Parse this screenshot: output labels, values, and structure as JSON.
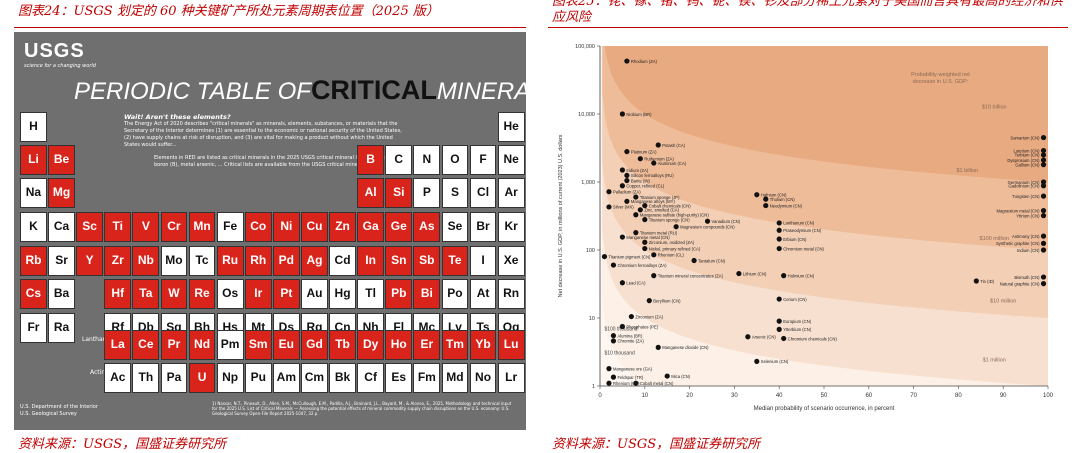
{
  "left_panel": {
    "caption": "图表24：USGS 划定的 60 种关键矿产所处元素周期表位置（2025 版）",
    "source": "资料来源：USGS，国盛证券研究所",
    "logo": {
      "name": "USGS",
      "tagline": "science for a changing world"
    },
    "title_main": "PERIODIC TABLE OF",
    "title_bold": "CRITICAL",
    "title_end": "MINERALS",
    "info_heading": "Wait! Aren't these elements?",
    "info_text": "The Energy Act of 2020 describes \"critical minerals\" as minerals, elements, substances, or materials that the Secretary of the Interior determines (1) are essential to the economic or national security of the United States, (2) have supply chains at risk of disruption, and (3) are vital for making a product without which the United States would suffer...",
    "legend_text": "Elements in RED are listed as critical minerals in the 2025 USGS critical mineral list. Graphite (C), boron (B), metal arsenic, ... Critical lists are available from the USGS critical mineral list.",
    "lanthanides_label": "Lanthanides",
    "actinides_label": "Actinides",
    "footer_left": "U.S. Department of the Interior\nU.S. Geological Survey",
    "footer_right": "1) Nassar, N.T., Pineault, D., Allen, S.M., McCullough, E.M., Padilla, A.J., Brainard, J.L., Bayard, M., & Alonso, E., 2025, Methodology and technical input for the 2025 U.S. List of Critical Minerals — Assessing the potential effects of mineral commodity supply chain disruptions on the U.S. economy: U.S. Geological Survey Open-File Report 2025-1047, 32 p.",
    "colors": {
      "critical": "#d9241c",
      "normal": "#ffffff",
      "background": "#6f6f6f"
    },
    "rows": [
      [
        [
          "H",
          1,
          "n"
        ],
        [
          "He",
          18,
          "n"
        ]
      ],
      [
        [
          "Li",
          1,
          "c"
        ],
        [
          "Be",
          2,
          "c"
        ],
        [
          "B",
          13,
          "c"
        ],
        [
          "C",
          14,
          "n"
        ],
        [
          "N",
          15,
          "n"
        ],
        [
          "O",
          16,
          "n"
        ],
        [
          "F",
          17,
          "n"
        ],
        [
          "Ne",
          18,
          "n"
        ]
      ],
      [
        [
          "Na",
          1,
          "n"
        ],
        [
          "Mg",
          2,
          "c"
        ],
        [
          "Al",
          13,
          "c"
        ],
        [
          "Si",
          14,
          "c"
        ],
        [
          "P",
          15,
          "n"
        ],
        [
          "S",
          16,
          "n"
        ],
        [
          "Cl",
          17,
          "n"
        ],
        [
          "Ar",
          18,
          "n"
        ]
      ],
      [
        [
          "K",
          1,
          "n"
        ],
        [
          "Ca",
          2,
          "n"
        ],
        [
          "Sc",
          3,
          "c"
        ],
        [
          "Ti",
          4,
          "c"
        ],
        [
          "V",
          5,
          "c"
        ],
        [
          "Cr",
          6,
          "c"
        ],
        [
          "Mn",
          7,
          "c"
        ],
        [
          "Fe",
          8,
          "n"
        ],
        [
          "Co",
          9,
          "c"
        ],
        [
          "Ni",
          10,
          "c"
        ],
        [
          "Cu",
          11,
          "c"
        ],
        [
          "Zn",
          12,
          "c"
        ],
        [
          "Ga",
          13,
          "c"
        ],
        [
          "Ge",
          14,
          "c"
        ],
        [
          "As",
          15,
          "c"
        ],
        [
          "Se",
          16,
          "n"
        ],
        [
          "Br",
          17,
          "n"
        ],
        [
          "Kr",
          18,
          "n"
        ]
      ],
      [
        [
          "Rb",
          1,
          "c"
        ],
        [
          "Sr",
          2,
          "n"
        ],
        [
          "Y",
          3,
          "c"
        ],
        [
          "Zr",
          4,
          "c"
        ],
        [
          "Nb",
          5,
          "c"
        ],
        [
          "Mo",
          6,
          "n"
        ],
        [
          "Tc",
          7,
          "n"
        ],
        [
          "Ru",
          8,
          "c"
        ],
        [
          "Rh",
          9,
          "c"
        ],
        [
          "Pd",
          10,
          "c"
        ],
        [
          "Ag",
          11,
          "c"
        ],
        [
          "Cd",
          12,
          "n"
        ],
        [
          "In",
          13,
          "c"
        ],
        [
          "Sn",
          14,
          "c"
        ],
        [
          "Sb",
          15,
          "c"
        ],
        [
          "Te",
          16,
          "c"
        ],
        [
          "I",
          17,
          "n"
        ],
        [
          "Xe",
          18,
          "n"
        ]
      ],
      [
        [
          "Cs",
          1,
          "c"
        ],
        [
          "Ba",
          2,
          "n"
        ],
        [
          "Hf",
          4,
          "c"
        ],
        [
          "Ta",
          5,
          "c"
        ],
        [
          "W",
          6,
          "c"
        ],
        [
          "Re",
          7,
          "c"
        ],
        [
          "Os",
          8,
          "n"
        ],
        [
          "Ir",
          9,
          "c"
        ],
        [
          "Pt",
          10,
          "c"
        ],
        [
          "Au",
          11,
          "n"
        ],
        [
          "Hg",
          12,
          "n"
        ],
        [
          "Tl",
          13,
          "n"
        ],
        [
          "Pb",
          14,
          "c"
        ],
        [
          "Bi",
          15,
          "c"
        ],
        [
          "Po",
          16,
          "n"
        ],
        [
          "At",
          17,
          "n"
        ],
        [
          "Rn",
          18,
          "n"
        ]
      ],
      [
        [
          "Fr",
          1,
          "n"
        ],
        [
          "Ra",
          2,
          "n"
        ],
        [
          "Rf",
          4,
          "n"
        ],
        [
          "Db",
          5,
          "n"
        ],
        [
          "Sg",
          6,
          "n"
        ],
        [
          "Bh",
          7,
          "n"
        ],
        [
          "Hs",
          8,
          "n"
        ],
        [
          "Mt",
          9,
          "n"
        ],
        [
          "Ds",
          10,
          "n"
        ],
        [
          "Rg",
          11,
          "n"
        ],
        [
          "Cn",
          12,
          "n"
        ],
        [
          "Nh",
          13,
          "n"
        ],
        [
          "Fl",
          14,
          "n"
        ],
        [
          "Mc",
          15,
          "n"
        ],
        [
          "Lv",
          16,
          "n"
        ],
        [
          "Ts",
          17,
          "n"
        ],
        [
          "Og",
          18,
          "n"
        ]
      ]
    ],
    "lanthanides": [
      [
        "La",
        "c"
      ],
      [
        "Ce",
        "c"
      ],
      [
        "Pr",
        "c"
      ],
      [
        "Nd",
        "c"
      ],
      [
        "Pm",
        "n"
      ],
      [
        "Sm",
        "c"
      ],
      [
        "Eu",
        "c"
      ],
      [
        "Gd",
        "c"
      ],
      [
        "Tb",
        "c"
      ],
      [
        "Dy",
        "c"
      ],
      [
        "Ho",
        "c"
      ],
      [
        "Er",
        "c"
      ],
      [
        "Tm",
        "c"
      ],
      [
        "Yb",
        "c"
      ],
      [
        "Lu",
        "c"
      ]
    ],
    "actinides": [
      [
        "Ac",
        "n"
      ],
      [
        "Th",
        "n"
      ],
      [
        "Pa",
        "n"
      ],
      [
        "U",
        "c"
      ],
      [
        "Np",
        "n"
      ],
      [
        "Pu",
        "n"
      ],
      [
        "Am",
        "n"
      ],
      [
        "Cm",
        "n"
      ],
      [
        "Bk",
        "n"
      ],
      [
        "Cf",
        "n"
      ],
      [
        "Es",
        "n"
      ],
      [
        "Fm",
        "n"
      ],
      [
        "Md",
        "n"
      ],
      [
        "No",
        "n"
      ],
      [
        "Lr",
        "n"
      ]
    ]
  },
  "right_panel": {
    "caption": "图表25：铑、镓、锗、钨、铌、镁、钐及部分稀土元素对于美国而言具有最高的经济和供应风险",
    "source": "资料来源：USGS，国盛证券研究所",
    "chart_data": {
      "type": "scatter",
      "title": "",
      "xlabel": "Median probability of scenario occurrence, in percent",
      "ylabel": "Net decrease in U.S. GDP, in millions of current (2023) U.S. dollars",
      "xlim": [
        0,
        100
      ],
      "ylim": [
        1,
        100000
      ],
      "y_scale": "log",
      "x_ticks": [
        0,
        10,
        20,
        30,
        40,
        50,
        60,
        70,
        80,
        90,
        100
      ],
      "y_ticks": [
        1,
        10,
        100,
        1000,
        10000,
        100000
      ],
      "y_tick_labels": [
        "1",
        "10",
        "100",
        "1,000",
        "10,000",
        "100,000"
      ],
      "band_colors": [
        "#fbeee5",
        "#f7ddcb",
        "#f2cbb0",
        "#edb995",
        "#e6a77c"
      ],
      "band_labels": [
        {
          "text": "$1 million",
          "x": 88,
          "y": 2.3
        },
        {
          "text": "$10 million",
          "x": 90,
          "y": 17
        },
        {
          "text": "$100 million",
          "x": 88,
          "y": 140
        },
        {
          "text": "$1 billion",
          "x": 82,
          "y": 1400
        },
        {
          "text": "$10 billion",
          "x": 88,
          "y": 12000
        }
      ],
      "legend_text": [
        "Probability-weighted net",
        "decrease in U.S. GDP:"
      ],
      "contour_labels": [
        {
          "text": "$100 thousand",
          "x": 1,
          "y": 6.5
        },
        {
          "text": "$10 thousand",
          "x": 1,
          "y": 2.9
        }
      ],
      "points": [
        {
          "label": "Rhodium (ZA)",
          "x": 6,
          "y": 60000
        },
        {
          "label": "Niobium (BR)",
          "x": 5,
          "y": 10000
        },
        {
          "label": "Samarium (CN)",
          "x": 99,
          "y": 4500
        },
        {
          "label": "Potash (CA)",
          "x": 13,
          "y": 3500
        },
        {
          "label": "Platinum (ZA)",
          "x": 6,
          "y": 2800
        },
        {
          "label": "Ruthenium (ZA)",
          "x": 9,
          "y": 2200
        },
        {
          "label": "Aluminum (CA)",
          "x": 12,
          "y": 1900
        },
        {
          "label": "Lutetium (CN)",
          "x": 99,
          "y": 2900
        },
        {
          "label": "Terbium (CN)",
          "x": 99,
          "y": 2500
        },
        {
          "label": "Dysprosium (CN)",
          "x": 99,
          "y": 2100
        },
        {
          "label": "Gallium (CN)",
          "x": 99,
          "y": 1800
        },
        {
          "label": "Iridium (ZA)",
          "x": 5,
          "y": 1500
        },
        {
          "label": "Silicon ferroalloys (RU)",
          "x": 6,
          "y": 1250
        },
        {
          "label": "Barite (IN)",
          "x": 6,
          "y": 1050
        },
        {
          "label": "Copper, refined (CL)",
          "x": 5,
          "y": 880
        },
        {
          "label": "Palladium (ZA)",
          "x": 2,
          "y": 720
        },
        {
          "label": "Titanium sponge (JP)",
          "x": 8,
          "y": 600
        },
        {
          "label": "Manganese alloys (MY)",
          "x": 6,
          "y": 520
        },
        {
          "label": "Cobalt chemicals (CN)",
          "x": 10,
          "y": 450
        },
        {
          "label": "Zinc, smelted (CA)",
          "x": 9,
          "y": 390
        },
        {
          "label": "Silver (MX)",
          "x": 2,
          "y": 430
        },
        {
          "label": "Manganese sulfate (high-purity) (CN)",
          "x": 8,
          "y": 330
        },
        {
          "label": "Germanium (CN)",
          "x": 99,
          "y": 1000
        },
        {
          "label": "Gadolinium (CN)",
          "x": 99,
          "y": 880
        },
        {
          "label": "Tungsten (CN)",
          "x": 99,
          "y": 620
        },
        {
          "label": "Hafnium (CN)",
          "x": 35,
          "y": 650
        },
        {
          "label": "Thulium (CN)",
          "x": 37,
          "y": 560
        },
        {
          "label": "Neodymium (CN)",
          "x": 37,
          "y": 450
        },
        {
          "label": "Magnesium metal (CN)",
          "x": 99,
          "y": 380
        },
        {
          "label": "Yttrium (CN)",
          "x": 99,
          "y": 320
        },
        {
          "label": "Titanium sponge (CN)",
          "x": 10,
          "y": 280
        },
        {
          "label": "Vanadium (CN)",
          "x": 24,
          "y": 265
        },
        {
          "label": "Magnesium compounds (CN)",
          "x": 17,
          "y": 220
        },
        {
          "label": "Lanthanum (CN)",
          "x": 40,
          "y": 250
        },
        {
          "label": "Praseodymium (CN)",
          "x": 40,
          "y": 195
        },
        {
          "label": "Titanium metal (RU)",
          "x": 8,
          "y": 180
        },
        {
          "label": "Manganese metal (CN)",
          "x": 5,
          "y": 155
        },
        {
          "label": "Erbium (CN)",
          "x": 40,
          "y": 145
        },
        {
          "label": "Antimony (CN)",
          "x": 99,
          "y": 160
        },
        {
          "label": "Synthetic graphite (CN)",
          "x": 99,
          "y": 125
        },
        {
          "label": "Indium (CN)",
          "x": 99,
          "y": 100
        },
        {
          "label": "Zirconium, oxidized (ZA)",
          "x": 10,
          "y": 130
        },
        {
          "label": "Nickel, primary refined (CA)",
          "x": 10,
          "y": 105
        },
        {
          "label": "Chromium metal (CN)",
          "x": 40,
          "y": 105
        },
        {
          "label": "Rhenium (CL)",
          "x": 12,
          "y": 85
        },
        {
          "label": "Titanium pigment (CN)",
          "x": 1,
          "y": 80
        },
        {
          "label": "Tantalum (CN)",
          "x": 21,
          "y": 70
        },
        {
          "label": "Chromium ferroalloys (ZA)",
          "x": 3,
          "y": 60
        },
        {
          "label": "Titanium mineral concentrates (ZA)",
          "x": 12,
          "y": 42
        },
        {
          "label": "Lithium (CN)",
          "x": 31,
          "y": 45
        },
        {
          "label": "Holmium (CN)",
          "x": 41,
          "y": 42
        },
        {
          "label": "Lead (CA)",
          "x": 5,
          "y": 33
        },
        {
          "label": "Tin (ID)",
          "x": 84,
          "y": 35
        },
        {
          "label": "Bismuth (CN)",
          "x": 99,
          "y": 40
        },
        {
          "label": "Natural graphite (CN)",
          "x": 99,
          "y": 32
        },
        {
          "label": "Beryllium (CN)",
          "x": 11,
          "y": 18
        },
        {
          "label": "Cerium (CN)",
          "x": 40,
          "y": 19
        },
        {
          "label": "Zirconium (ZA)",
          "x": 7,
          "y": 10.5
        },
        {
          "label": "Europium (CN)",
          "x": 40,
          "y": 9
        },
        {
          "label": "Phosphates (PE)",
          "x": 5,
          "y": 7.5
        },
        {
          "label": "Ytterbium (CN)",
          "x": 40,
          "y": 6.8
        },
        {
          "label": "Alumina (BR)",
          "x": 3,
          "y": 5.5
        },
        {
          "label": "Arsenic (CN)",
          "x": 33,
          "y": 5.3
        },
        {
          "label": "Chromium chemicals (CN)",
          "x": 41,
          "y": 5.0
        },
        {
          "label": "Chromite (ZA)",
          "x": 3,
          "y": 4.6
        },
        {
          "label": "Manganese dioxide (CN)",
          "x": 13,
          "y": 3.7
        },
        {
          "label": "Selenium (CN)",
          "x": 35,
          "y": 2.3
        },
        {
          "label": "Manganese ore (GA)",
          "x": 2,
          "y": 1.8
        },
        {
          "label": "Feldspar (TR)",
          "x": 3,
          "y": 1.35
        },
        {
          "label": "Mica (CN)",
          "x": 15,
          "y": 1.4
        },
        {
          "label": "Cobalt metal (CN)",
          "x": 8,
          "y": 1.1
        },
        {
          "label": "Rhenium (US)",
          "x": 2,
          "y": 1.1
        }
      ]
    }
  }
}
